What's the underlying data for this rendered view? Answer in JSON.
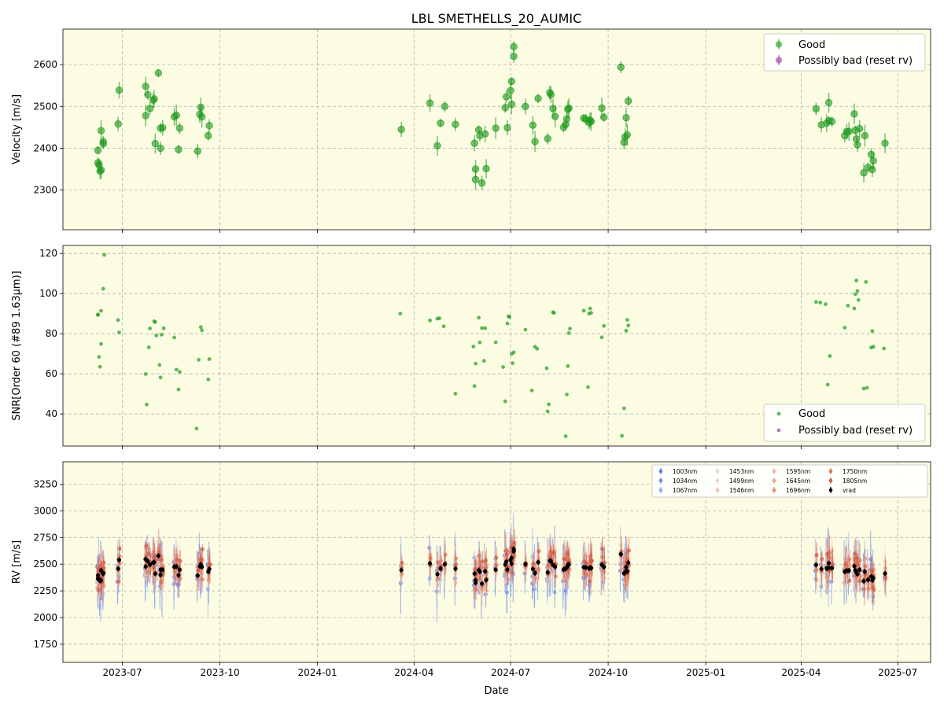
{
  "chart_data": [
    {
      "type": "scatter",
      "title": "LBL SMETHELLS_20_AUMIC",
      "xlabel": "",
      "ylabel": "Velocity [m/s]",
      "ylim": [
        2205,
        2685
      ],
      "xlim": [
        "2023-05-06",
        "2025-08-01"
      ],
      "yticks": [
        2300,
        2400,
        2500,
        2600
      ],
      "xticks": [
        "2023-07",
        "2023-10",
        "2024-01",
        "2024-04",
        "2024-07",
        "2024-10",
        "2025-01",
        "2025-04",
        "2025-07"
      ],
      "grid": true,
      "background": "#fcfce3",
      "legend": {
        "placement": "top-right",
        "entries": [
          "Good",
          "Possibly bad (reset rv)"
        ]
      },
      "colors": {
        "good": "#1e9a1e",
        "bad": "#9b3fa6"
      },
      "series": [
        {
          "name": "Good",
          "points": [
            [
              "2023-06-08",
              2395
            ],
            [
              "2023-06-08",
              2365
            ],
            [
              "2023-06-09",
              2360
            ],
            [
              "2023-06-10",
              2345
            ],
            [
              "2023-06-11",
              2348
            ],
            [
              "2023-06-11",
              2442
            ],
            [
              "2023-06-13",
              2410
            ],
            [
              "2023-06-13",
              2416
            ],
            [
              "2023-06-27",
              2458
            ],
            [
              "2023-06-28",
              2539
            ],
            [
              "2023-07-23",
              2548
            ],
            [
              "2023-07-23",
              2478
            ],
            [
              "2023-07-25",
              2528
            ],
            [
              "2023-07-27",
              2495
            ],
            [
              "2023-07-30",
              2515
            ],
            [
              "2023-07-31",
              2518
            ],
            [
              "2023-08-01",
              2411
            ],
            [
              "2023-08-04",
              2580
            ],
            [
              "2023-08-06",
              2448
            ],
            [
              "2023-08-06",
              2400
            ],
            [
              "2023-08-08",
              2449
            ],
            [
              "2023-08-19",
              2475
            ],
            [
              "2023-08-21",
              2479
            ],
            [
              "2023-08-23",
              2397
            ],
            [
              "2023-08-24",
              2448
            ],
            [
              "2023-09-10",
              2393
            ],
            [
              "2023-09-12",
              2481
            ],
            [
              "2023-09-13",
              2498
            ],
            [
              "2023-09-14",
              2475
            ],
            [
              "2023-09-20",
              2430
            ],
            [
              "2023-09-21",
              2454
            ],
            [
              "2024-03-20",
              2445
            ],
            [
              "2024-04-16",
              2508
            ],
            [
              "2024-04-23",
              2406
            ],
            [
              "2024-04-26",
              2460
            ],
            [
              "2024-04-30",
              2500
            ],
            [
              "2024-05-10",
              2457
            ],
            [
              "2024-05-28",
              2412
            ],
            [
              "2024-05-29",
              2350
            ],
            [
              "2024-05-29",
              2325
            ],
            [
              "2024-06-01",
              2444
            ],
            [
              "2024-06-02",
              2430
            ],
            [
              "2024-06-04",
              2317
            ],
            [
              "2024-06-07",
              2434
            ],
            [
              "2024-06-08",
              2351
            ],
            [
              "2024-06-17",
              2448
            ],
            [
              "2024-06-26",
              2497
            ],
            [
              "2024-06-27",
              2523
            ],
            [
              "2024-06-28",
              2449
            ],
            [
              "2024-07-01",
              2538
            ],
            [
              "2024-07-02",
              2505
            ],
            [
              "2024-07-02",
              2560
            ],
            [
              "2024-07-04",
              2643
            ],
            [
              "2024-07-04",
              2620
            ],
            [
              "2024-07-15",
              2500
            ],
            [
              "2024-07-22",
              2455
            ],
            [
              "2024-07-24",
              2416
            ],
            [
              "2024-07-27",
              2519
            ],
            [
              "2024-08-05",
              2423
            ],
            [
              "2024-08-07",
              2533
            ],
            [
              "2024-08-08",
              2528
            ],
            [
              "2024-08-10",
              2495
            ],
            [
              "2024-08-12",
              2476
            ],
            [
              "2024-08-20",
              2450
            ],
            [
              "2024-08-22",
              2457
            ],
            [
              "2024-08-23",
              2470
            ],
            [
              "2024-08-24",
              2493
            ],
            [
              "2024-08-25",
              2496
            ],
            [
              "2024-09-08",
              2472
            ],
            [
              "2024-09-10",
              2469
            ],
            [
              "2024-09-13",
              2461
            ],
            [
              "2024-09-14",
              2467
            ],
            [
              "2024-09-15",
              2464
            ],
            [
              "2024-09-25",
              2496
            ],
            [
              "2024-09-27",
              2474
            ],
            [
              "2024-10-13",
              2594
            ],
            [
              "2024-10-16",
              2414
            ],
            [
              "2024-10-17",
              2427
            ],
            [
              "2024-10-18",
              2473
            ],
            [
              "2024-10-19",
              2432
            ],
            [
              "2024-10-20",
              2513
            ],
            [
              "2025-04-15",
              2494
            ],
            [
              "2025-04-20",
              2456
            ],
            [
              "2025-04-25",
              2460
            ],
            [
              "2025-04-27",
              2509
            ],
            [
              "2025-04-27",
              2466
            ],
            [
              "2025-04-30",
              2464
            ],
            [
              "2025-05-12",
              2430
            ],
            [
              "2025-05-14",
              2440
            ],
            [
              "2025-05-16",
              2440
            ],
            [
              "2025-05-21",
              2482
            ],
            [
              "2025-05-22",
              2443
            ],
            [
              "2025-05-23",
              2422
            ],
            [
              "2025-05-24",
              2408
            ],
            [
              "2025-05-26",
              2447
            ],
            [
              "2025-05-30",
              2341
            ],
            [
              "2025-05-31",
              2430
            ],
            [
              "2025-06-03",
              2354
            ],
            [
              "2025-06-06",
              2385
            ],
            [
              "2025-06-07",
              2349
            ],
            [
              "2025-06-08",
              2370
            ],
            [
              "2025-06-19",
              2412
            ]
          ]
        },
        {
          "name": "Possibly bad (reset rv)",
          "points": []
        }
      ]
    },
    {
      "type": "scatter",
      "title": "",
      "xlabel": "",
      "ylabel": "SNR[Order 60 (#89 1.63μm)]",
      "ylim": [
        24,
        124
      ],
      "yticks": [
        40,
        60,
        80,
        100,
        120
      ],
      "xticks": [
        "2023-07",
        "2023-10",
        "2024-01",
        "2024-04",
        "2024-07",
        "2024-10",
        "2025-01",
        "2025-04",
        "2025-07"
      ],
      "grid": true,
      "background": "#fcfce3",
      "legend": {
        "placement": "bottom-right",
        "entries": [
          "Good",
          "Possibly bad (reset rv)"
        ]
      },
      "series": [
        {
          "name": "Good",
          "points": [
            [
              "2023-06-08",
              89.6
            ],
            [
              "2023-06-08",
              89.3
            ],
            [
              "2023-06-09",
              68.4
            ],
            [
              "2023-06-10",
              63.5
            ],
            [
              "2023-06-11",
              74.9
            ],
            [
              "2023-06-11",
              91.4
            ],
            [
              "2023-06-13",
              102.4
            ],
            [
              "2023-06-14",
              119.3
            ],
            [
              "2023-06-27",
              86.8
            ],
            [
              "2023-06-28",
              80.6
            ],
            [
              "2023-07-23",
              59.9
            ],
            [
              "2023-07-24",
              44.7
            ],
            [
              "2023-07-26",
              73.2
            ],
            [
              "2023-07-27",
              82.6
            ],
            [
              "2023-07-31",
              86.2
            ],
            [
              "2023-08-01",
              85.8
            ],
            [
              "2023-08-02",
              79.1
            ],
            [
              "2023-08-05",
              64.4
            ],
            [
              "2023-08-06",
              58.2
            ],
            [
              "2023-08-07",
              79.5
            ],
            [
              "2023-08-09",
              82.7
            ],
            [
              "2023-08-19",
              78.1
            ],
            [
              "2023-08-21",
              62.1
            ],
            [
              "2023-08-23",
              52.2
            ],
            [
              "2023-08-24",
              61.0
            ],
            [
              "2023-09-09",
              32.7
            ],
            [
              "2023-09-11",
              67.0
            ],
            [
              "2023-09-13",
              83.3
            ],
            [
              "2023-09-14",
              81.7
            ],
            [
              "2023-09-20",
              57.2
            ],
            [
              "2023-09-21",
              67.3
            ],
            [
              "2024-03-19",
              90.0
            ],
            [
              "2024-04-16",
              86.6
            ],
            [
              "2024-04-23",
              87.5
            ],
            [
              "2024-04-25",
              87.7
            ],
            [
              "2024-04-29",
              83.7
            ],
            [
              "2024-05-10",
              50.1
            ],
            [
              "2024-05-27",
              73.6
            ],
            [
              "2024-05-28",
              53.9
            ],
            [
              "2024-05-29",
              65.1
            ],
            [
              "2024-06-01",
              88.0
            ],
            [
              "2024-06-02",
              75.6
            ],
            [
              "2024-06-04",
              82.8
            ],
            [
              "2024-06-06",
              66.5
            ],
            [
              "2024-06-07",
              82.7
            ],
            [
              "2024-06-17",
              75.7
            ],
            [
              "2024-06-24",
              63.4
            ],
            [
              "2024-06-26",
              46.3
            ],
            [
              "2024-06-28",
              85.1
            ],
            [
              "2024-06-29",
              88.7
            ],
            [
              "2024-06-30",
              88.3
            ],
            [
              "2024-07-02",
              69.9
            ],
            [
              "2024-07-03",
              65.3
            ],
            [
              "2024-07-04",
              70.7
            ],
            [
              "2024-07-15",
              82.0
            ],
            [
              "2024-07-21",
              51.7
            ],
            [
              "2024-07-24",
              73.5
            ],
            [
              "2024-07-26",
              72.5
            ],
            [
              "2024-08-04",
              62.8
            ],
            [
              "2024-08-05",
              41.3
            ],
            [
              "2024-08-06",
              44.8
            ],
            [
              "2024-08-10",
              90.7
            ],
            [
              "2024-08-11",
              90.4
            ],
            [
              "2024-08-22",
              28.9
            ],
            [
              "2024-08-23",
              49.7
            ],
            [
              "2024-08-24",
              63.9
            ],
            [
              "2024-08-25",
              80.3
            ],
            [
              "2024-08-26",
              82.5
            ],
            [
              "2024-09-08",
              91.5
            ],
            [
              "2024-09-12",
              53.4
            ],
            [
              "2024-09-13",
              90.0
            ],
            [
              "2024-09-14",
              92.6
            ],
            [
              "2024-09-15",
              90.4
            ],
            [
              "2024-09-25",
              78.2
            ],
            [
              "2024-09-27",
              83.9
            ],
            [
              "2024-10-14",
              29.1
            ],
            [
              "2024-10-16",
              42.8
            ],
            [
              "2024-10-18",
              81.5
            ],
            [
              "2024-10-19",
              86.9
            ],
            [
              "2024-10-20",
              84.1
            ],
            [
              "2025-04-15",
              95.8
            ],
            [
              "2025-04-19",
              95.5
            ],
            [
              "2025-04-24",
              94.7
            ],
            [
              "2025-04-26",
              54.6
            ],
            [
              "2025-04-28",
              68.9
            ],
            [
              "2025-05-12",
              83.0
            ],
            [
              "2025-05-15",
              94.0
            ],
            [
              "2025-05-21",
              92.6
            ],
            [
              "2025-05-22",
              99.7
            ],
            [
              "2025-05-23",
              106.5
            ],
            [
              "2025-05-24",
              101.3
            ],
            [
              "2025-05-25",
              96.8
            ],
            [
              "2025-05-30",
              52.6
            ],
            [
              "2025-06-01",
              105.8
            ],
            [
              "2025-06-02",
              53.0
            ],
            [
              "2025-06-06",
              73.1
            ],
            [
              "2025-06-07",
              81.3
            ],
            [
              "2025-06-08",
              73.5
            ],
            [
              "2025-06-18",
              72.6
            ]
          ]
        },
        {
          "name": "Possibly bad (reset rv)",
          "points": []
        }
      ]
    },
    {
      "type": "scatter",
      "title": "",
      "xlabel": "Date",
      "ylabel": "RV [m/s]",
      "ylim": [
        1580,
        3460
      ],
      "yticks": [
        1750,
        2000,
        2250,
        2500,
        2750,
        3000,
        3250
      ],
      "xticks": [
        "2023-07",
        "2023-10",
        "2024-01",
        "2024-04",
        "2024-07",
        "2024-10",
        "2025-01",
        "2025-04",
        "2025-07"
      ],
      "grid": true,
      "background": "#fcfce3",
      "legend": {
        "placement": "top-right",
        "columns": 5
      },
      "wavelength_series": [
        {
          "name": "1003nm",
          "color": "#5f7ee6",
          "scatter": 210
        },
        {
          "name": "1034nm",
          "color": "#6e8ff0",
          "scatter": 190
        },
        {
          "name": "1067nm",
          "color": "#88a8f8",
          "scatter": 200
        },
        {
          "name": "1453nm",
          "color": "#dcdde0",
          "scatter": 230
        },
        {
          "name": "1499nm",
          "color": "#efd5c6",
          "scatter": 190
        },
        {
          "name": "1546nm",
          "color": "#f6c6b0",
          "scatter": 150
        },
        {
          "name": "1595nm",
          "color": "#f4b89c",
          "scatter": 120
        },
        {
          "name": "1645nm",
          "color": "#eea789",
          "scatter": 120
        },
        {
          "name": "1696nm",
          "color": "#e68f72",
          "scatter": 140
        },
        {
          "name": "1750nm",
          "color": "#dc7558",
          "scatter": 150
        },
        {
          "name": "1805nm",
          "color": "#cf5a45",
          "scatter": 160
        }
      ],
      "vrad": {
        "name": "vrad",
        "color": "#000000",
        "points": "same dates and values as the top panel velocity series"
      }
    }
  ]
}
